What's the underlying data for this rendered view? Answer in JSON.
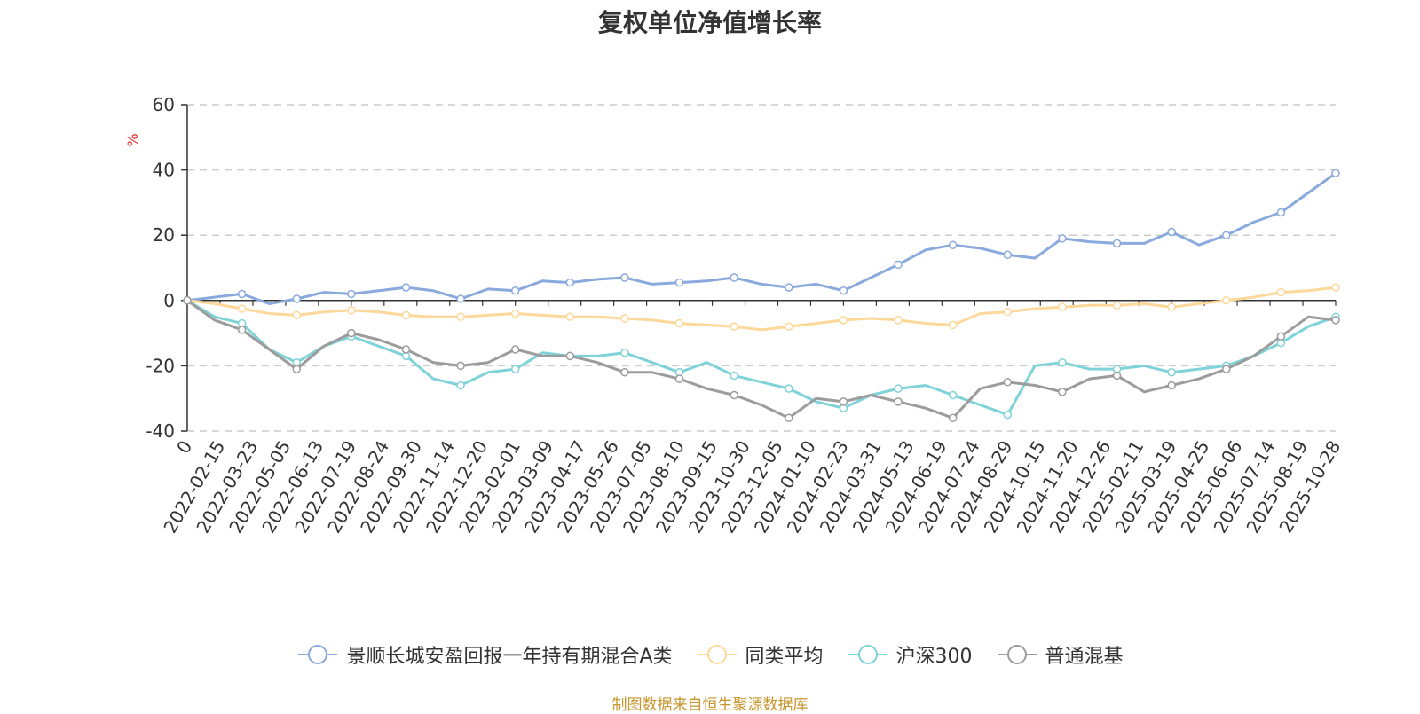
{
  "chart_data": {
    "type": "line",
    "title": "复权单位净值增长率",
    "ylabel": "%",
    "xlabel": "",
    "ylim": [
      -40,
      60
    ],
    "yticks": [
      60,
      40,
      20,
      0,
      -20,
      -40
    ],
    "x_tick_labels": [
      "0",
      "2022-02-15",
      "2022-03-23",
      "2022-05-05",
      "2022-06-13",
      "2022-07-19",
      "2022-08-24",
      "2022-09-30",
      "2022-11-14",
      "2022-12-20",
      "2023-02-01",
      "2023-03-09",
      "2023-04-17",
      "2023-05-26",
      "2023-07-05",
      "2023-08-10",
      "2023-09-15",
      "2023-10-30",
      "2023-12-05",
      "2024-01-10",
      "2024-02-23",
      "2024-03-31",
      "2024-05-13",
      "2024-06-19",
      "2024-07-24",
      "2024-08-29",
      "2024-10-15",
      "2024-11-20",
      "2024-12-26",
      "2025-02-11",
      "2025-03-19",
      "2025-04-25",
      "2025-06-06",
      "2025-07-14",
      "2025-08-19",
      "2025-10-28"
    ],
    "grid": true,
    "legend_position": "bottom",
    "series": [
      {
        "name": "景顺长城安盈回报一年持有期混合A类",
        "color": "#8aa9dc",
        "values": [
          0,
          1,
          2,
          -1,
          0.5,
          2.5,
          2,
          3,
          4,
          3,
          0.5,
          3.5,
          3,
          6,
          5.5,
          6.5,
          7,
          5,
          5.5,
          6,
          7,
          5,
          4,
          5,
          3,
          7,
          11,
          15.5,
          17,
          16,
          14,
          13,
          19,
          18,
          17.5,
          17.5,
          21,
          17,
          20,
          24,
          27,
          33,
          39
        ]
      },
      {
        "name": "同类平均",
        "color": "#fdd89a",
        "values": [
          0,
          -1,
          -2.5,
          -4,
          -4.5,
          -3.5,
          -3,
          -3.5,
          -4.5,
          -5,
          -5,
          -4.5,
          -4,
          -4.5,
          -5,
          -5,
          -5.5,
          -6,
          -7,
          -7.5,
          -8,
          -9,
          -8,
          -7,
          -6,
          -5.5,
          -6,
          -7,
          -7.5,
          -4,
          -3.5,
          -2.5,
          -2,
          -1.5,
          -1.5,
          -1,
          -2,
          -1,
          0,
          1,
          2.5,
          3,
          4
        ]
      },
      {
        "name": "沪深300",
        "color": "#7fd3d8",
        "values": [
          0,
          -5,
          -7,
          -15,
          -19,
          -14,
          -11,
          -14,
          -17,
          -24,
          -26,
          -22,
          -21,
          -16,
          -17,
          -17,
          -16,
          -19,
          -22,
          -19,
          -23,
          -25,
          -27,
          -31,
          -33,
          -29,
          -27,
          -26,
          -29,
          -32,
          -35,
          -20,
          -19,
          -21,
          -21,
          -20,
          -22,
          -21,
          -20,
          -17,
          -13,
          -8,
          -5
        ]
      },
      {
        "name": "普通混基",
        "color": "#9c9c9c",
        "values": [
          0,
          -6,
          -9,
          -15,
          -21,
          -14,
          -10,
          -12,
          -15,
          -19,
          -20,
          -19,
          -15,
          -17,
          -17,
          -19,
          -22,
          -22,
          -24,
          -27,
          -29,
          -32,
          -36,
          -30,
          -31,
          -29,
          -31,
          -33,
          -36,
          -27,
          -25,
          -26,
          -28,
          -24,
          -23,
          -28,
          -26,
          -24,
          -21,
          -17,
          -11,
          -5,
          -6
        ]
      }
    ]
  },
  "source_note": "制图数据来自恒生聚源数据库"
}
